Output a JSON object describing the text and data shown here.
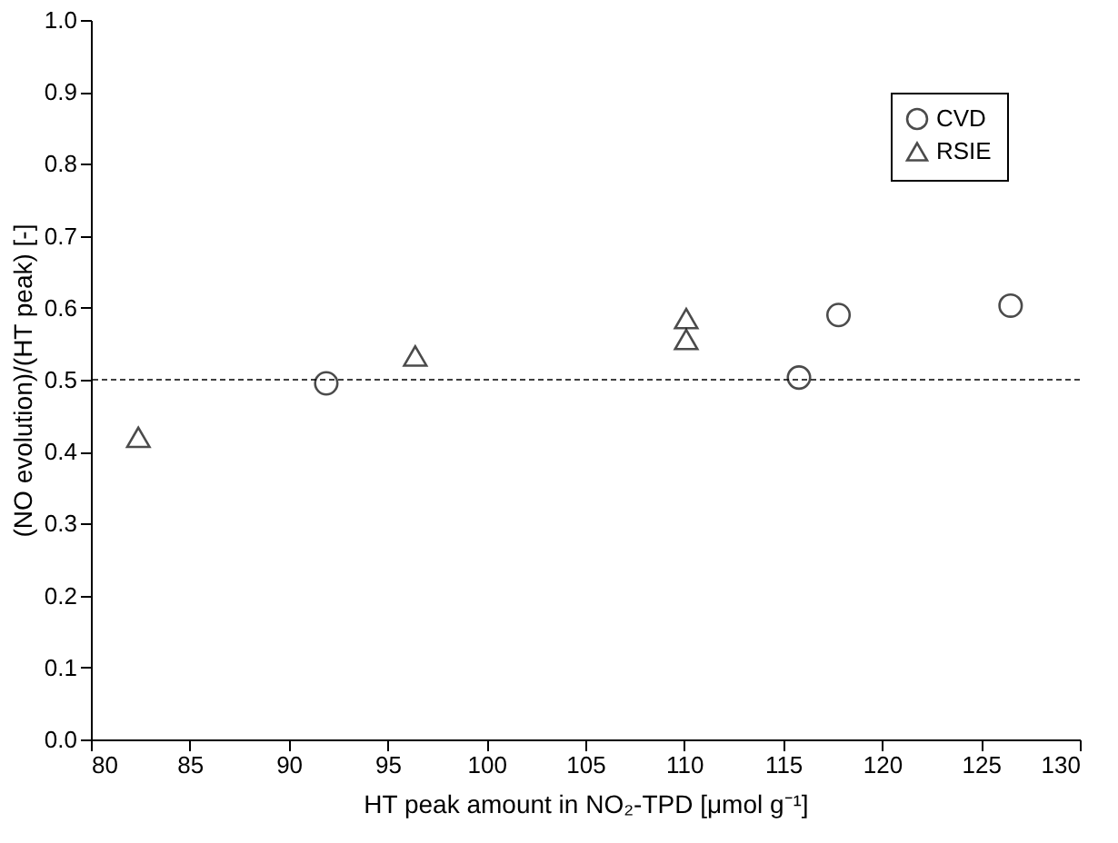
{
  "chart_data": {
    "type": "scatter",
    "xlabel": "HT peak amount in NO₂-TPD [μmol g⁻¹]",
    "ylabel": "(NO evolution)/(HT peak)  [-]",
    "series": [
      {
        "name": "CVD",
        "color": "#000000",
        "marker": "circle",
        "x": [
          91.9,
          115.8,
          117.8,
          126.5
        ],
        "values": [
          0.495,
          0.503,
          0.59,
          0.603
        ]
      },
      {
        "name": "RSIE",
        "color": "#000000",
        "marker": "triangle",
        "x": [
          82.4,
          96.4,
          110.1,
          110.1
        ],
        "values": [
          0.42,
          0.533,
          0.585,
          0.556
        ]
      }
    ],
    "xlim": [
      80,
      130
    ],
    "xticks": [
      80,
      85,
      90,
      95,
      100,
      105,
      110,
      115,
      120,
      125,
      130
    ],
    "ylim": [
      0,
      1
    ],
    "yticks": [
      {
        "value": 0,
        "label": "0.0"
      },
      0.1,
      0.2,
      0.3,
      0.4,
      0.5,
      0.6,
      0.7,
      0.8,
      0.9,
      {
        "value": 1,
        "label": "1.0"
      }
    ],
    "ref_lines": [
      {
        "axis": "y",
        "value": 0.5,
        "line_style": "dashed",
        "color": "#000000"
      }
    ],
    "grid": false,
    "legend": "top right"
  }
}
